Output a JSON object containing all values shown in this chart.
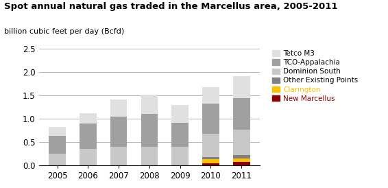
{
  "title": "Spot annual natural gas traded in the Marcellus area, 2005-2011",
  "ylabel": "billion cubic feet per day (Bcfd)",
  "years": [
    2005,
    2006,
    2007,
    2008,
    2009,
    2010,
    2011
  ],
  "series": {
    "New Marcellus": {
      "values": [
        0,
        0,
        0,
        0,
        0,
        0.05,
        0.07
      ],
      "color": "#8B0000"
    },
    "Clarington": {
      "values": [
        0,
        0,
        0,
        0,
        0,
        0.08,
        0.08
      ],
      "color": "#FFC000"
    },
    "Other Existing Points": {
      "values": [
        0,
        0,
        0,
        0,
        0,
        0.05,
        0.07
      ],
      "color": "#808080"
    },
    "Dominion South": {
      "values": [
        0.25,
        0.35,
        0.4,
        0.4,
        0.4,
        0.5,
        0.55
      ],
      "color": "#C8C8C8"
    },
    "TCO-Appalachia": {
      "values": [
        0.38,
        0.55,
        0.65,
        0.7,
        0.52,
        0.65,
        0.68
      ],
      "color": "#A0A0A0"
    },
    "Tetco M3": {
      "values": [
        0.19,
        0.22,
        0.37,
        0.42,
        0.38,
        0.35,
        0.47
      ],
      "color": "#E0E0E0"
    }
  },
  "series_order": [
    "New Marcellus",
    "Clarington",
    "Other Existing Points",
    "Dominion South",
    "TCO-Appalachia",
    "Tetco M3"
  ],
  "ylim": [
    0,
    2.5
  ],
  "yticks": [
    0.0,
    0.5,
    1.0,
    1.5,
    2.0,
    2.5
  ],
  "legend_labels_order": [
    "Tetco M3",
    "TCO-Appalachia",
    "Dominion South",
    "Other Existing Points",
    "Clarington",
    "New Marcellus"
  ],
  "legend_text_colors": {
    "Tetco M3": "#000000",
    "TCO-Appalachia": "#000000",
    "Dominion South": "#000000",
    "Other Existing Points": "#000000",
    "Clarington": "#FFC000",
    "New Marcellus": "#8B0000"
  },
  "background_color": "#FFFFFF",
  "grid_color": "#AAAAAA",
  "title_fontsize": 9.5,
  "ylabel_fontsize": 8,
  "tick_fontsize": 8.5,
  "legend_fontsize": 7.5
}
